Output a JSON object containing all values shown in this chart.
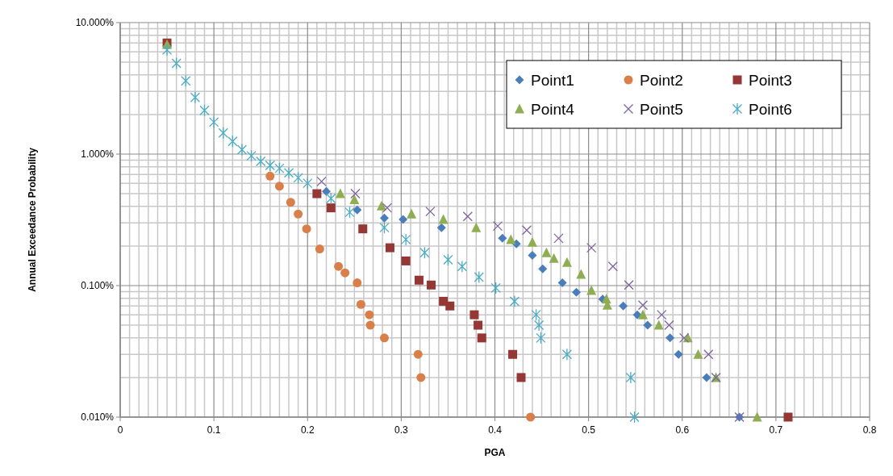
{
  "chart_data": {
    "type": "scatter",
    "xlabel": "PGA",
    "ylabel": "Annual Exceedance Probability",
    "xlim": [
      0,
      0.8
    ],
    "xticks": [
      0,
      0.1,
      0.2,
      0.3,
      0.4,
      0.5,
      0.6,
      0.7,
      0.8
    ],
    "ylim": [
      0.01,
      10
    ],
    "yticks": [
      {
        "value": 0.01,
        "label": "0.010%"
      },
      {
        "value": 0.1,
        "label": "0.100%"
      },
      {
        "value": 1,
        "label": "1.000%"
      },
      {
        "value": 10,
        "label": "10.000%"
      }
    ],
    "log": "y",
    "grid": true,
    "legend": "top right",
    "series": [
      {
        "name": "Point1",
        "color": "#4a7ebb",
        "marker": "diamond",
        "x": [
          0.22,
          0.253,
          0.282,
          0.302,
          0.343,
          0.408,
          0.423,
          0.44,
          0.451,
          0.472,
          0.487,
          0.515,
          0.537,
          0.552,
          0.563,
          0.587,
          0.596,
          0.626,
          0.661
        ],
        "values": [
          0.52,
          0.376,
          0.327,
          0.318,
          0.276,
          0.229,
          0.208,
          0.17,
          0.134,
          0.105,
          0.089,
          0.079,
          0.07,
          0.06,
          0.05,
          0.04,
          0.03,
          0.02,
          0.01
        ]
      },
      {
        "name": "Point2",
        "color": "#d9804a",
        "marker": "circle",
        "x": [
          0.16,
          0.17,
          0.182,
          0.19,
          0.199,
          0.213,
          0.233,
          0.24,
          0.253,
          0.257,
          0.266,
          0.267,
          0.282,
          0.318,
          0.321,
          0.438
        ],
        "values": [
          0.68,
          0.57,
          0.43,
          0.35,
          0.27,
          0.19,
          0.14,
          0.125,
          0.105,
          0.072,
          0.06,
          0.05,
          0.04,
          0.03,
          0.02,
          0.01
        ]
      },
      {
        "name": "Point3",
        "color": "#953735",
        "marker": "square",
        "x": [
          0.05,
          0.21,
          0.225,
          0.259,
          0.288,
          0.305,
          0.319,
          0.332,
          0.345,
          0.352,
          0.378,
          0.382,
          0.386,
          0.419,
          0.428,
          0.713
        ],
        "values": [
          7,
          0.5,
          0.39,
          0.27,
          0.194,
          0.154,
          0.11,
          0.101,
          0.076,
          0.07,
          0.06,
          0.05,
          0.04,
          0.03,
          0.02,
          0.01
        ]
      },
      {
        "name": "Point4",
        "color": "#8fae52",
        "marker": "triangle",
        "x": [
          0.05,
          0.235,
          0.25,
          0.279,
          0.311,
          0.345,
          0.38,
          0.417,
          0.44,
          0.455,
          0.463,
          0.477,
          0.492,
          0.503,
          0.519,
          0.52,
          0.558,
          0.575,
          0.606,
          0.617,
          0.636,
          0.68
        ],
        "values": [
          6.8,
          0.5,
          0.45,
          0.404,
          0.35,
          0.318,
          0.276,
          0.224,
          0.214,
          0.178,
          0.161,
          0.15,
          0.122,
          0.092,
          0.079,
          0.071,
          0.06,
          0.05,
          0.04,
          0.03,
          0.02,
          0.01
        ]
      },
      {
        "name": "Point5",
        "color": "#7e63a0",
        "marker": "cross",
        "x": [
          0.215,
          0.251,
          0.285,
          0.331,
          0.371,
          0.403,
          0.434,
          0.468,
          0.503,
          0.526,
          0.543,
          0.558,
          0.578,
          0.586,
          0.602,
          0.628,
          0.636,
          0.661
        ],
        "values": [
          0.62,
          0.5,
          0.39,
          0.366,
          0.336,
          0.284,
          0.264,
          0.229,
          0.194,
          0.14,
          0.101,
          0.071,
          0.06,
          0.05,
          0.04,
          0.03,
          0.02,
          0.01
        ]
      },
      {
        "name": "Point6",
        "color": "#4bacc6",
        "x": [
          0.05,
          0.06,
          0.07,
          0.08,
          0.09,
          0.1,
          0.11,
          0.12,
          0.13,
          0.14,
          0.15,
          0.16,
          0.17,
          0.18,
          0.19,
          0.2,
          0.225,
          0.245,
          0.282,
          0.305,
          0.325,
          0.35,
          0.365,
          0.383,
          0.401,
          0.421,
          0.444,
          0.447,
          0.449,
          0.477,
          0.545,
          0.549
        ],
        "values": [
          6.2,
          4.9,
          3.6,
          2.7,
          2.15,
          1.75,
          1.45,
          1.25,
          1.08,
          0.97,
          0.88,
          0.82,
          0.78,
          0.72,
          0.66,
          0.6,
          0.46,
          0.361,
          0.276,
          0.224,
          0.178,
          0.157,
          0.14,
          0.116,
          0.096,
          0.076,
          0.06,
          0.05,
          0.04,
          0.03,
          0.02,
          0.01
        ]
      }
    ]
  }
}
